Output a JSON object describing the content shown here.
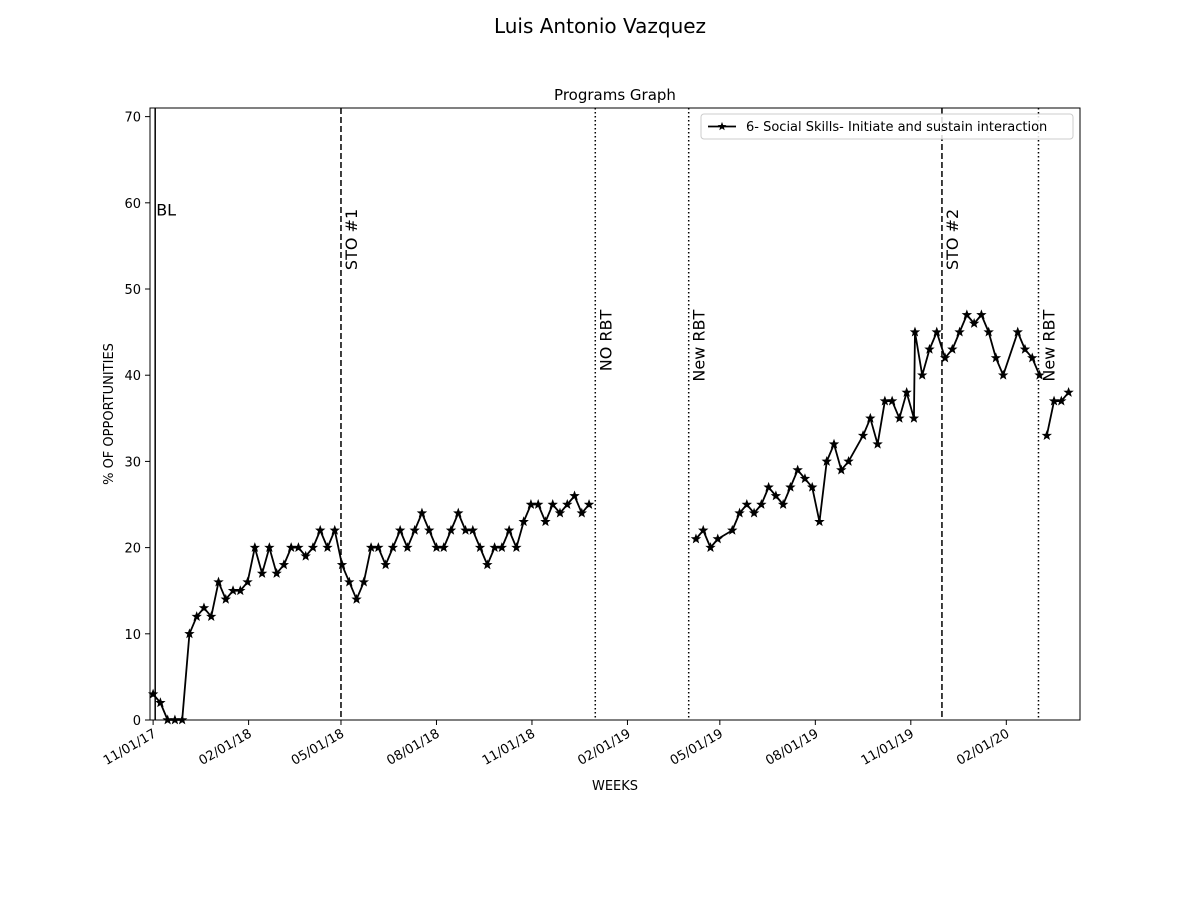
{
  "suptitle": "Luis Antonio  Vazquez",
  "chart_data": {
    "type": "line",
    "title": "Programs Graph",
    "xlabel": "WEEKS",
    "ylabel": "% OF OPPORTUNITIES",
    "ylim": [
      0,
      71
    ],
    "xlim": [
      "2017-10-29",
      "2020-04-12"
    ],
    "yticks": [
      0,
      10,
      20,
      30,
      40,
      50,
      60,
      70
    ],
    "xticks": [
      {
        "date": "2017-11-01",
        "label": "11/01/17"
      },
      {
        "date": "2018-02-01",
        "label": "02/01/18"
      },
      {
        "date": "2018-05-01",
        "label": "05/01/18"
      },
      {
        "date": "2018-08-01",
        "label": "08/01/18"
      },
      {
        "date": "2018-11-01",
        "label": "11/01/18"
      },
      {
        "date": "2019-02-01",
        "label": "02/01/19"
      },
      {
        "date": "2019-05-01",
        "label": "05/01/19"
      },
      {
        "date": "2019-08-01",
        "label": "08/01/19"
      },
      {
        "date": "2019-11-01",
        "label": "11/01/19"
      },
      {
        "date": "2020-02-01",
        "label": "02/01/20"
      }
    ],
    "legend": {
      "position": "upper-right"
    },
    "series": [
      {
        "name": "6- Social Skills- Initiate and sustain interaction",
        "color": "#000000",
        "marker": "star",
        "segments": [
          [
            [
              "2017-11-01",
              3
            ],
            [
              "2017-11-08",
              2
            ],
            [
              "2017-11-15",
              0
            ],
            [
              "2017-11-22",
              0
            ],
            [
              "2017-11-29",
              0
            ],
            [
              "2017-12-06",
              10
            ],
            [
              "2017-12-13",
              12
            ],
            [
              "2017-12-20",
              13
            ],
            [
              "2017-12-27",
              12
            ],
            [
              "2018-01-03",
              16
            ],
            [
              "2018-01-10",
              14
            ],
            [
              "2018-01-17",
              15
            ],
            [
              "2018-01-24",
              15
            ],
            [
              "2018-01-31",
              16
            ],
            [
              "2018-02-07",
              20
            ],
            [
              "2018-02-14",
              17
            ],
            [
              "2018-02-21",
              20
            ],
            [
              "2018-02-28",
              17
            ],
            [
              "2018-03-07",
              18
            ],
            [
              "2018-03-14",
              20
            ],
            [
              "2018-03-21",
              20
            ],
            [
              "2018-03-28",
              19
            ],
            [
              "2018-04-04",
              20
            ],
            [
              "2018-04-11",
              22
            ],
            [
              "2018-04-18",
              20
            ],
            [
              "2018-04-25",
              22
            ],
            [
              "2018-05-02",
              18
            ],
            [
              "2018-05-09",
              16
            ],
            [
              "2018-05-16",
              14
            ],
            [
              "2018-05-23",
              16
            ],
            [
              "2018-05-30",
              20
            ],
            [
              "2018-06-06",
              20
            ],
            [
              "2018-06-13",
              18
            ],
            [
              "2018-06-20",
              20
            ],
            [
              "2018-06-27",
              22
            ],
            [
              "2018-07-04",
              20
            ],
            [
              "2018-07-11",
              22
            ],
            [
              "2018-07-18",
              24
            ],
            [
              "2018-07-25",
              22
            ],
            [
              "2018-08-01",
              20
            ],
            [
              "2018-08-08",
              20
            ],
            [
              "2018-08-15",
              22
            ],
            [
              "2018-08-22",
              24
            ],
            [
              "2018-08-29",
              22
            ],
            [
              "2018-09-05",
              22
            ],
            [
              "2018-09-12",
              20
            ],
            [
              "2018-09-19",
              18
            ],
            [
              "2018-09-26",
              20
            ],
            [
              "2018-10-03",
              20
            ],
            [
              "2018-10-10",
              22
            ],
            [
              "2018-10-17",
              20
            ],
            [
              "2018-10-24",
              23
            ],
            [
              "2018-10-31",
              25
            ],
            [
              "2018-11-07",
              25
            ],
            [
              "2018-11-14",
              23
            ],
            [
              "2018-11-21",
              25
            ],
            [
              "2018-11-28",
              24
            ],
            [
              "2018-12-05",
              25
            ],
            [
              "2018-12-12",
              26
            ],
            [
              "2018-12-19",
              24
            ],
            [
              "2018-12-26",
              25
            ]
          ],
          [
            [
              "2019-04-08",
              21
            ],
            [
              "2019-04-15",
              22
            ],
            [
              "2019-04-22",
              20
            ],
            [
              "2019-04-29",
              21
            ],
            [
              "2019-05-13",
              22
            ],
            [
              "2019-05-20",
              24
            ],
            [
              "2019-05-27",
              25
            ],
            [
              "2019-06-03",
              24
            ],
            [
              "2019-06-10",
              25
            ],
            [
              "2019-06-17",
              27
            ],
            [
              "2019-06-24",
              26
            ],
            [
              "2019-07-01",
              25
            ],
            [
              "2019-07-08",
              27
            ],
            [
              "2019-07-15",
              29
            ],
            [
              "2019-07-22",
              28
            ],
            [
              "2019-07-29",
              27
            ],
            [
              "2019-08-05",
              23
            ],
            [
              "2019-08-12",
              30
            ],
            [
              "2019-08-19",
              32
            ],
            [
              "2019-08-26",
              29
            ],
            [
              "2019-09-02",
              30
            ],
            [
              "2019-09-16",
              33
            ],
            [
              "2019-09-23",
              35
            ],
            [
              "2019-09-30",
              32
            ],
            [
              "2019-10-07",
              37
            ],
            [
              "2019-10-14",
              37
            ],
            [
              "2019-10-21",
              35
            ],
            [
              "2019-10-28",
              38
            ],
            [
              "2019-11-04",
              35
            ],
            [
              "2019-11-05",
              45
            ],
            [
              "2019-11-12",
              40
            ],
            [
              "2019-11-19",
              43
            ],
            [
              "2019-11-26",
              45
            ],
            [
              "2019-12-04",
              42
            ],
            [
              "2019-12-11",
              43
            ],
            [
              "2019-12-18",
              45
            ],
            [
              "2019-12-25",
              47
            ],
            [
              "2020-01-01",
              46
            ],
            [
              "2020-01-08",
              47
            ],
            [
              "2020-01-15",
              45
            ],
            [
              "2020-01-22",
              42
            ],
            [
              "2020-01-29",
              40
            ],
            [
              "2020-02-12",
              45
            ],
            [
              "2020-02-19",
              43
            ],
            [
              "2020-02-26",
              42
            ],
            [
              "2020-03-04",
              40
            ]
          ],
          [
            [
              "2020-03-11",
              33
            ],
            [
              "2020-03-18",
              37
            ],
            [
              "2020-03-25",
              37
            ],
            [
              "2020-04-01",
              38
            ]
          ]
        ]
      }
    ],
    "phase_lines": [
      {
        "date": "2017-11-03",
        "label": "BL",
        "style": "solid",
        "label_orientation": "horizontal"
      },
      {
        "date": "2018-05-01",
        "label": "STO #1",
        "style": "dashed",
        "label_orientation": "vertical"
      },
      {
        "date": "2019-01-01",
        "label": "NO RBT",
        "style": "dotted",
        "label_orientation": "vertical"
      },
      {
        "date": "2019-04-01",
        "label": "New RBT",
        "style": "dotted",
        "label_orientation": "vertical"
      },
      {
        "date": "2019-12-01",
        "label": "STO #2",
        "style": "dashed",
        "label_orientation": "vertical"
      },
      {
        "date": "2020-03-03",
        "label": "New RBT",
        "style": "dotted",
        "label_orientation": "vertical"
      }
    ]
  }
}
